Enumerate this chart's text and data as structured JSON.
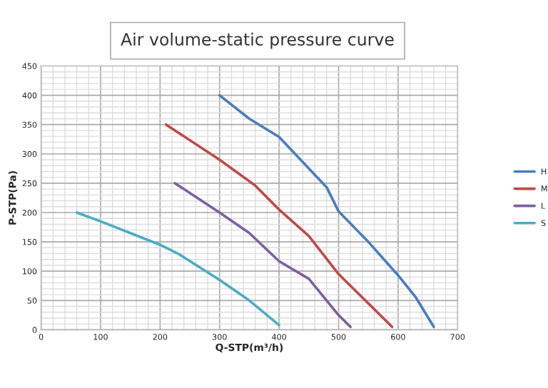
{
  "chart_data": {
    "type": "line",
    "title": "Air volume-static pressure curve",
    "xlabel": "Q-STP(m³/h)",
    "ylabel": "P-STP(Pa)",
    "xlim": [
      0,
      700
    ],
    "xticks": [
      0,
      100,
      200,
      300,
      400,
      500,
      600,
      700
    ],
    "ylim": [
      0,
      450
    ],
    "yticks": [
      0,
      50,
      100,
      150,
      200,
      250,
      300,
      350,
      400,
      450
    ],
    "grid": true,
    "legend": "right",
    "marker": "none",
    "line_style": "solid",
    "series": [
      {
        "name": "H",
        "color": "#4a7ebb",
        "x": [
          300,
          350,
          400,
          450,
          480,
          500,
          550,
          600,
          630,
          660
        ],
        "values": [
          400,
          360,
          329,
          275,
          243,
          202,
          150,
          93,
          55,
          5
        ]
      },
      {
        "name": "M",
        "color": "#be4b48",
        "x": [
          210,
          300,
          360,
          400,
          450,
          500,
          550,
          590
        ],
        "values": [
          350,
          290,
          246,
          205,
          160,
          95,
          45,
          5
        ]
      },
      {
        "name": "L",
        "color": "#7d60a0",
        "x": [
          225,
          300,
          350,
          400,
          450,
          500,
          520
        ],
        "values": [
          250,
          200,
          165,
          117,
          87,
          25,
          5
        ]
      },
      {
        "name": "S",
        "color": "#4bacc6",
        "x": [
          60,
          100,
          150,
          200,
          230,
          300,
          350,
          400
        ],
        "values": [
          200,
          185,
          165,
          145,
          130,
          85,
          50,
          8
        ]
      }
    ]
  }
}
